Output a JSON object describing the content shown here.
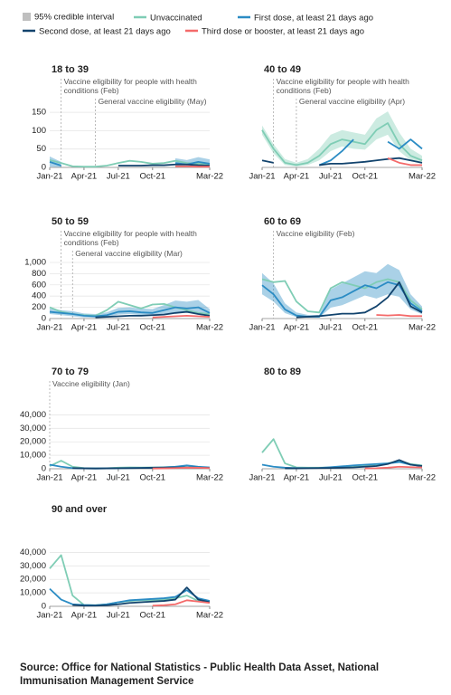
{
  "legend": {
    "interval": "95% credible interval"
  },
  "chart_data": [
    {
      "type": "line",
      "title": "18 to 39",
      "categories": [
        "Jan-21",
        null,
        null,
        "Apr-21",
        null,
        null,
        "Jul-21",
        null,
        null,
        "Oct-21",
        null,
        null,
        null,
        null,
        "Mar-22"
      ],
      "ylim": [
        0,
        165
      ],
      "yticks": [
        0,
        50,
        100,
        150
      ],
      "annotations": [
        {
          "text": "Vaccine eligibility for people with health conditions (Feb)",
          "x": 1
        },
        {
          "text": "General vaccine eligibility (May)",
          "x": 4
        }
      ],
      "series": [
        {
          "name": "Unvaccinated",
          "color": "#7fcdb5",
          "values": [
            20,
            12,
            3,
            2,
            2,
            5,
            12,
            18,
            15,
            10,
            12,
            18,
            12,
            10,
            8
          ]
        },
        {
          "name": "First dose, at least 21 days ago",
          "color": "#2b8cc4",
          "values": [
            15,
            5,
            null,
            null,
            null,
            null,
            null,
            null,
            null,
            null,
            null,
            12,
            8,
            15,
            10
          ],
          "lower": [
            2,
            1,
            null,
            null,
            null,
            null,
            null,
            null,
            null,
            null,
            null,
            2,
            2,
            3,
            2
          ],
          "upper": [
            30,
            15,
            null,
            null,
            null,
            null,
            null,
            null,
            null,
            null,
            null,
            25,
            20,
            28,
            22
          ]
        },
        {
          "name": "Second dose, at least 21 days ago",
          "color": "#12436d",
          "values": [
            null,
            null,
            null,
            null,
            null,
            null,
            5,
            5,
            5,
            6,
            6,
            8,
            8,
            6,
            5
          ]
        },
        {
          "name": "Third dose or booster, at least 21 days ago",
          "color": "#f46a6a",
          "values": [
            null,
            null,
            null,
            null,
            null,
            null,
            null,
            null,
            null,
            null,
            null,
            3,
            3,
            2,
            2
          ]
        }
      ]
    },
    {
      "type": "line",
      "title": "40 to 49",
      "categories": [
        "Jan-21",
        null,
        null,
        "Apr-21",
        null,
        null,
        "Jul-21",
        null,
        null,
        "Oct-21",
        null,
        null,
        null,
        null,
        "Mar-22"
      ],
      "ylim": [
        0,
        130
      ],
      "yticks": [],
      "annotations": [
        {
          "text": "Vaccine eligibility for people with health conditions (Feb)",
          "x": 1
        },
        {
          "text": "General vaccine eligibility (Apr)",
          "x": 3
        }
      ],
      "series": [
        {
          "name": "Unvaccinated",
          "color": "#7fcdb5",
          "values": [
            80,
            40,
            10,
            5,
            10,
            25,
            50,
            60,
            55,
            50,
            80,
            95,
            50,
            25,
            15
          ],
          "lower": [
            70,
            30,
            5,
            2,
            5,
            15,
            35,
            45,
            40,
            38,
            60,
            70,
            35,
            15,
            8
          ],
          "upper": [
            90,
            50,
            18,
            10,
            18,
            40,
            70,
            80,
            75,
            70,
            105,
            120,
            75,
            40,
            25
          ]
        },
        {
          "name": "First dose, at least 21 days ago",
          "color": "#2b8cc4",
          "values": [
            null,
            null,
            null,
            null,
            null,
            5,
            15,
            35,
            60,
            null,
            null,
            55,
            40,
            60,
            40
          ]
        },
        {
          "name": "Second dose, at least 21 days ago",
          "color": "#12436d",
          "values": [
            15,
            10,
            null,
            null,
            null,
            5,
            8,
            8,
            10,
            12,
            15,
            18,
            20,
            15,
            10
          ]
        },
        {
          "name": "Third dose or booster, at least 21 days ago",
          "color": "#f46a6a",
          "values": [
            null,
            null,
            null,
            null,
            null,
            null,
            null,
            null,
            null,
            null,
            null,
            20,
            10,
            5,
            5
          ]
        }
      ]
    },
    {
      "type": "line",
      "title": "50 to 59",
      "categories": [
        "Jan-21",
        null,
        null,
        "Apr-21",
        null,
        null,
        "Jul-21",
        null,
        null,
        "Oct-21",
        null,
        null,
        null,
        null,
        "Mar-22"
      ],
      "ylim": [
        0,
        1080
      ],
      "yticks": [
        0,
        200,
        400,
        600,
        800,
        {
          "value": 1000,
          "label": "1,000"
        }
      ],
      "annotations": [
        {
          "text": "Vaccine eligibility for people with health conditions (Feb)",
          "x": 1
        },
        {
          "text": "General vaccine eligibility (Mar)",
          "x": 2
        }
      ],
      "series": [
        {
          "name": "Unvaccinated",
          "color": "#7fcdb5",
          "values": [
            200,
            120,
            80,
            60,
            50,
            150,
            300,
            240,
            180,
            250,
            260,
            200,
            150,
            100,
            80
          ]
        },
        {
          "name": "First dose, at least 21 days ago",
          "color": "#2b8cc4",
          "values": [
            120,
            100,
            80,
            50,
            40,
            60,
            120,
            130,
            110,
            100,
            150,
            200,
            180,
            200,
            100
          ],
          "lower": [
            80,
            60,
            40,
            20,
            15,
            30,
            70,
            80,
            60,
            50,
            80,
            110,
            100,
            100,
            50
          ],
          "upper": [
            180,
            150,
            130,
            90,
            80,
            110,
            190,
            200,
            180,
            170,
            240,
            320,
            300,
            330,
            170
          ]
        },
        {
          "name": "Second dose, at least 21 days ago",
          "color": "#12436d",
          "values": [
            null,
            null,
            null,
            null,
            20,
            30,
            40,
            50,
            50,
            60,
            70,
            100,
            120,
            80,
            50
          ]
        },
        {
          "name": "Third dose or booster, at least 21 days ago",
          "color": "#f46a6a",
          "values": [
            null,
            null,
            null,
            null,
            null,
            null,
            null,
            null,
            null,
            20,
            30,
            40,
            50,
            40,
            30
          ]
        }
      ]
    },
    {
      "type": "line",
      "title": "60 to 69",
      "categories": [
        "Jan-21",
        null,
        null,
        "Apr-21",
        null,
        null,
        "Jul-21",
        null,
        null,
        "Oct-21",
        null,
        null,
        null,
        null,
        "Mar-22"
      ],
      "ylim": [
        0,
        1000
      ],
      "yticks": [],
      "annotations": [
        {
          "text": "Vaccine eligibility (Feb)",
          "x": 1
        }
      ],
      "series": [
        {
          "name": "Unvaccinated",
          "color": "#7fcdb5",
          "values": [
            650,
            600,
            620,
            280,
            120,
            100,
            500,
            600,
            550,
            500,
            600,
            650,
            600,
            300,
            150
          ]
        },
        {
          "name": "First dose, at least 21 days ago",
          "color": "#2b8cc4",
          "values": [
            550,
            400,
            150,
            50,
            30,
            30,
            300,
            350,
            450,
            550,
            500,
            600,
            550,
            250,
            120
          ],
          "lower": [
            400,
            280,
            90,
            25,
            15,
            15,
            180,
            220,
            300,
            380,
            330,
            400,
            360,
            150,
            70
          ],
          "upper": [
            750,
            580,
            250,
            100,
            60,
            60,
            480,
            580,
            680,
            780,
            750,
            900,
            800,
            400,
            200
          ]
        },
        {
          "name": "Second dose, at least 21 days ago",
          "color": "#12436d",
          "values": [
            null,
            null,
            null,
            20,
            30,
            40,
            60,
            80,
            80,
            100,
            200,
            350,
            600,
            200,
            100
          ]
        },
        {
          "name": "Third dose or booster, at least 21 days ago",
          "color": "#f46a6a",
          "values": [
            null,
            null,
            null,
            null,
            null,
            null,
            null,
            null,
            null,
            null,
            60,
            50,
            60,
            40,
            40
          ]
        }
      ]
    },
    {
      "type": "line",
      "title": "70 to 79",
      "categories": [
        "Jan-21",
        null,
        null,
        "Apr-21",
        null,
        null,
        "Jul-21",
        null,
        null,
        "Oct-21",
        null,
        null,
        null,
        null,
        "Mar-22"
      ],
      "ylim": [
        0,
        45000
      ],
      "yticks": [
        0,
        {
          "value": 10000,
          "label": "10,000"
        },
        {
          "value": 20000,
          "label": "20,000"
        },
        {
          "value": 30000,
          "label": "30,000"
        },
        {
          "value": 40000,
          "label": "40,000"
        }
      ],
      "annotations": [
        {
          "text": "Vaccine eligibility (Jan)",
          "x": 0
        }
      ],
      "series": [
        {
          "name": "Unvaccinated",
          "color": "#7fcdb5",
          "values": [
            2000,
            6000,
            1500,
            500,
            300,
            400,
            800,
            1000,
            900,
            1000,
            1200,
            1500,
            1000,
            800,
            600
          ]
        },
        {
          "name": "First dose, at least 21 days ago",
          "color": "#2b8cc4",
          "values": [
            3000,
            1500,
            500,
            300,
            200,
            300,
            400,
            500,
            600,
            800,
            1000,
            1500,
            2500,
            1500,
            1000
          ]
        },
        {
          "name": "Second dose, at least 21 days ago",
          "color": "#12436d",
          "values": [
            null,
            null,
            500,
            300,
            200,
            300,
            400,
            500,
            600,
            700,
            800,
            900,
            1000,
            800,
            600
          ]
        },
        {
          "name": "Third dose or booster, at least 21 days ago",
          "color": "#f46a6a",
          "values": [
            null,
            null,
            null,
            null,
            null,
            null,
            null,
            null,
            null,
            200,
            300,
            500,
            800,
            700,
            500
          ]
        }
      ]
    },
    {
      "type": "line",
      "title": "80 to 89",
      "categories": [
        "Jan-21",
        null,
        null,
        "Apr-21",
        null,
        null,
        "Jul-21",
        null,
        null,
        "Oct-21",
        null,
        null,
        null,
        null,
        "Mar-22"
      ],
      "ylim": [
        0,
        45000
      ],
      "yticks": [],
      "annotations": [],
      "series": [
        {
          "name": "Unvaccinated",
          "color": "#7fcdb5",
          "values": [
            12000,
            22000,
            4000,
            1000,
            800,
            800,
            1000,
            1500,
            1500,
            2000,
            2500,
            4000,
            6000,
            3500,
            2500
          ]
        },
        {
          "name": "First dose, at least 21 days ago",
          "color": "#2b8cc4",
          "values": [
            3000,
            1500,
            800,
            500,
            500,
            600,
            1200,
            1800,
            2500,
            3000,
            3500,
            4000,
            5000,
            3000,
            2000
          ]
        },
        {
          "name": "Second dose, at least 21 days ago",
          "color": "#12436d",
          "values": [
            null,
            null,
            300,
            300,
            400,
            500,
            600,
            800,
            1000,
            1500,
            2000,
            3500,
            6500,
            3000,
            2000
          ]
        },
        {
          "name": "Third dose or booster, at least 21 days ago",
          "color": "#f46a6a",
          "values": [
            null,
            null,
            null,
            null,
            null,
            null,
            null,
            null,
            null,
            300,
            400,
            800,
            1500,
            1200,
            1000
          ]
        }
      ]
    },
    {
      "type": "line",
      "title": "90 and over",
      "categories": [
        "Jan-21",
        null,
        null,
        "Apr-21",
        null,
        null,
        "Jul-21",
        null,
        null,
        "Oct-21",
        null,
        null,
        null,
        null,
        "Mar-22"
      ],
      "ylim": [
        0,
        45000
      ],
      "yticks": [
        0,
        {
          "value": 10000,
          "label": "10,000"
        },
        {
          "value": 20000,
          "label": "20,000"
        },
        {
          "value": 30000,
          "label": "30,000"
        },
        {
          "value": 40000,
          "label": "40,000"
        }
      ],
      "annotations": [],
      "series": [
        {
          "name": "Unvaccinated",
          "color": "#7fcdb5",
          "values": [
            28000,
            38000,
            8000,
            1000,
            800,
            1500,
            3000,
            4000,
            4500,
            4500,
            5000,
            6000,
            8000,
            4000,
            3000
          ]
        },
        {
          "name": "First dose, at least 21 days ago",
          "color": "#2b8cc4",
          "values": [
            13000,
            5000,
            1500,
            1000,
            700,
            1500,
            3000,
            4500,
            5000,
            5500,
            6000,
            7000,
            12000,
            6000,
            4000
          ]
        },
        {
          "name": "Second dose, at least 21 days ago",
          "color": "#12436d",
          "values": [
            null,
            null,
            1000,
            500,
            500,
            800,
            1500,
            2500,
            3000,
            3500,
            4000,
            5000,
            14000,
            5000,
            3000
          ]
        },
        {
          "name": "Third dose or booster, at least 21 days ago",
          "color": "#f46a6a",
          "values": [
            null,
            null,
            null,
            null,
            null,
            null,
            null,
            null,
            null,
            500,
            800,
            1500,
            4500,
            3500,
            2500
          ]
        }
      ]
    }
  ],
  "source": "Source: Office for National Statistics - Public Health Data Asset, National Immunisation Management Service"
}
